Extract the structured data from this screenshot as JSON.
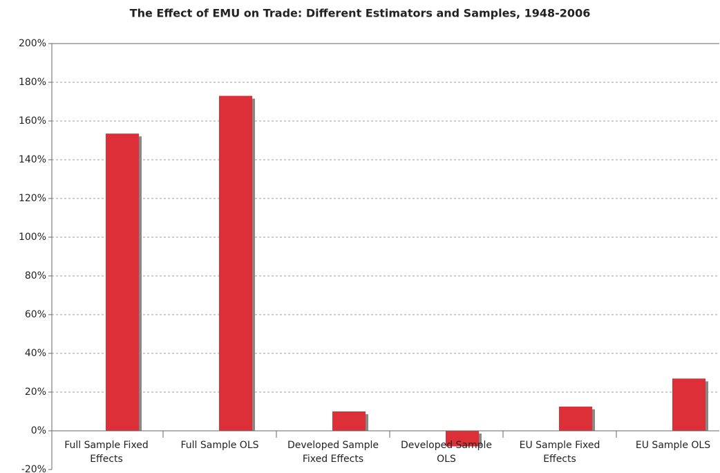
{
  "chart_data": {
    "type": "bar",
    "title": "The Effect of EMU on Trade: Different Estimators and Samples, 1948-2006",
    "categories": [
      "Full Sample Fixed Effects",
      "Full Sample OLS",
      "Developed Sample Fixed Effects",
      "Developed Sample OLS",
      "EU Sample Fixed Effects",
      "EU Sample OLS"
    ],
    "values": [
      153.5,
      173,
      10,
      -8,
      12.5,
      27
    ],
    "color": "#dc2f37",
    "ylim": [
      -20,
      200
    ],
    "yticks": [
      {
        "value": -20,
        "label": "-20%"
      },
      {
        "value": 0,
        "label": "0%"
      },
      {
        "value": 20,
        "label": "20%"
      },
      {
        "value": 40,
        "label": "40%"
      },
      {
        "value": 60,
        "label": "60%"
      },
      {
        "value": 80,
        "label": "80%"
      },
      {
        "value": 100,
        "label": "100%"
      },
      {
        "value": 120,
        "label": "120%"
      },
      {
        "value": 140,
        "label": "140%"
      },
      {
        "value": 160,
        "label": "160%"
      },
      {
        "value": 180,
        "label": "180%"
      },
      {
        "value": 200,
        "label": "200%"
      }
    ],
    "grid": true
  }
}
